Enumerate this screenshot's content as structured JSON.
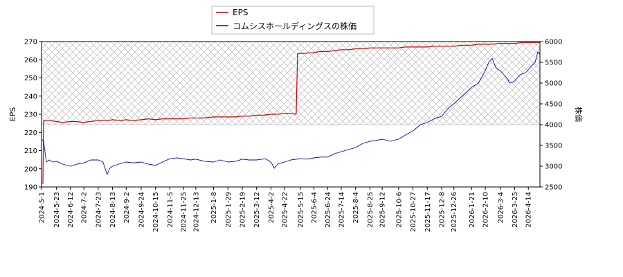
{
  "chart_data": {
    "type": "line",
    "xlabel": "",
    "ylabel_left": "EPS",
    "ylabel_right": "株価",
    "ylim_left": [
      190,
      270
    ],
    "ylim_right": [
      2500,
      6000
    ],
    "yticks_left": [
      "190",
      "200",
      "210",
      "220",
      "230",
      "240",
      "250",
      "260",
      "270"
    ],
    "yticks_right": [
      "2500",
      "3000",
      "3500",
      "4000",
      "4500",
      "5000",
      "5500",
      "6000"
    ],
    "xlim": [
      "2024-05-01",
      "2026-05-01"
    ],
    "xticks": [
      "2024-5-1",
      "2024-5-23",
      "2024-6-12",
      "2024-7-2",
      "2024-7-23",
      "2024-8-13",
      "2024-9-2",
      "2024-9-24",
      "2024-10-15",
      "2024-11-5",
      "2024-11-25",
      "2024-12-13",
      "2025-1-8",
      "2025-1-29",
      "2025-2-19",
      "2025-3-12",
      "2025-4-2",
      "2025-4-22",
      "2025-5-15",
      "2025-6-4",
      "2025-6-24",
      "2025-7-14",
      "2025-8-4",
      "2025-8-25",
      "2025-9-12",
      "2025-10-6",
      "2025-10-27",
      "2025-11-17",
      "2025-12-8",
      "2025-12-26",
      "2026-1-21",
      "2026-2-10",
      "2026-3-4",
      "2026-3-25",
      "2026-4-14"
    ],
    "legend_position": "top-center",
    "hatched_band": {
      "axis": "right",
      "y_range": [
        4000,
        6000
      ]
    },
    "series": [
      {
        "name": "EPS",
        "axis": "left",
        "color": "#cc0000",
        "points": [
          [
            "2024-05-01",
            192
          ],
          [
            "2024-05-03",
            192
          ],
          [
            "2024-05-04",
            226.5
          ],
          [
            "2024-05-15",
            226.5
          ],
          [
            "2024-05-23",
            226
          ],
          [
            "2024-06-01",
            225.5
          ],
          [
            "2024-06-12",
            226
          ],
          [
            "2024-06-20",
            226
          ],
          [
            "2024-07-02",
            225.5
          ],
          [
            "2024-07-10",
            226
          ],
          [
            "2024-07-23",
            226.5
          ],
          [
            "2024-08-05",
            226.5
          ],
          [
            "2024-08-13",
            227
          ],
          [
            "2024-08-25",
            226.5
          ],
          [
            "2024-09-02",
            227
          ],
          [
            "2024-09-12",
            226.5
          ],
          [
            "2024-09-24",
            227
          ],
          [
            "2024-10-05",
            227.5
          ],
          [
            "2024-10-15",
            227
          ],
          [
            "2024-10-25",
            227.5
          ],
          [
            "2024-11-05",
            227.5
          ],
          [
            "2024-11-15",
            227.5
          ],
          [
            "2024-11-25",
            227.5
          ],
          [
            "2024-12-05",
            228
          ],
          [
            "2024-12-13",
            228
          ],
          [
            "2024-12-25",
            228
          ],
          [
            "2025-01-08",
            228.5
          ],
          [
            "2025-01-20",
            228.5
          ],
          [
            "2025-01-29",
            228.5
          ],
          [
            "2025-02-10",
            228.5
          ],
          [
            "2025-02-19",
            229
          ],
          [
            "2025-03-01",
            229
          ],
          [
            "2025-03-12",
            229.5
          ],
          [
            "2025-03-22",
            229.5
          ],
          [
            "2025-04-02",
            230
          ],
          [
            "2025-04-12",
            230
          ],
          [
            "2025-04-22",
            230.5
          ],
          [
            "2025-05-01",
            230.5
          ],
          [
            "2025-05-09",
            230
          ],
          [
            "2025-05-11",
            263.5
          ],
          [
            "2025-05-20",
            263.5
          ],
          [
            "2025-06-04",
            264
          ],
          [
            "2025-06-14",
            264.5
          ],
          [
            "2025-06-24",
            264.5
          ],
          [
            "2025-07-04",
            265
          ],
          [
            "2025-07-14",
            265.5
          ],
          [
            "2025-07-25",
            265.5
          ],
          [
            "2025-08-04",
            266
          ],
          [
            "2025-08-15",
            266
          ],
          [
            "2025-08-25",
            266.5
          ],
          [
            "2025-09-03",
            266.5
          ],
          [
            "2025-09-12",
            266.5
          ],
          [
            "2025-09-24",
            266.5
          ],
          [
            "2025-10-06",
            266.5
          ],
          [
            "2025-10-16",
            267
          ],
          [
            "2025-10-27",
            267
          ],
          [
            "2025-11-07",
            267
          ],
          [
            "2025-11-17",
            267
          ],
          [
            "2025-11-28",
            267.5
          ],
          [
            "2025-12-08",
            267.5
          ],
          [
            "2025-12-18",
            267.5
          ],
          [
            "2025-12-26",
            267.5
          ],
          [
            "2026-01-08",
            268
          ],
          [
            "2026-01-21",
            268
          ],
          [
            "2026-01-31",
            268.5
          ],
          [
            "2026-02-10",
            268.5
          ],
          [
            "2026-02-20",
            268.5
          ],
          [
            "2026-03-04",
            269
          ],
          [
            "2026-03-15",
            269
          ],
          [
            "2026-03-25",
            269
          ],
          [
            "2026-04-05",
            269.5
          ],
          [
            "2026-04-14",
            269.5
          ],
          [
            "2026-04-25",
            269.5
          ],
          [
            "2026-05-01",
            269.5
          ]
        ]
      },
      {
        "name": "コムシスホールディングスの株価",
        "axis": "right",
        "color": "#0000cc",
        "points": [
          [
            "2024-05-01",
            3650
          ],
          [
            "2024-05-04",
            3600
          ],
          [
            "2024-05-08",
            3100
          ],
          [
            "2024-05-12",
            3150
          ],
          [
            "2024-05-18",
            3100
          ],
          [
            "2024-05-23",
            3120
          ],
          [
            "2024-06-01",
            3050
          ],
          [
            "2024-06-12",
            3000
          ],
          [
            "2024-06-22",
            3050
          ],
          [
            "2024-07-02",
            3080
          ],
          [
            "2024-07-12",
            3150
          ],
          [
            "2024-07-23",
            3150
          ],
          [
            "2024-07-30",
            3100
          ],
          [
            "2024-08-05",
            2800
          ],
          [
            "2024-08-09",
            2950
          ],
          [
            "2024-08-13",
            3000
          ],
          [
            "2024-08-22",
            3050
          ],
          [
            "2024-09-02",
            3100
          ],
          [
            "2024-09-12",
            3080
          ],
          [
            "2024-09-24",
            3100
          ],
          [
            "2024-10-05",
            3050
          ],
          [
            "2024-10-15",
            3020
          ],
          [
            "2024-10-25",
            3100
          ],
          [
            "2024-11-05",
            3180
          ],
          [
            "2024-11-15",
            3200
          ],
          [
            "2024-11-25",
            3180
          ],
          [
            "2024-12-05",
            3150
          ],
          [
            "2024-12-13",
            3170
          ],
          [
            "2024-12-25",
            3120
          ],
          [
            "2025-01-08",
            3100
          ],
          [
            "2025-01-18",
            3150
          ],
          [
            "2025-01-29",
            3100
          ],
          [
            "2025-02-10",
            3120
          ],
          [
            "2025-02-19",
            3170
          ],
          [
            "2025-03-01",
            3150
          ],
          [
            "2025-03-12",
            3150
          ],
          [
            "2025-03-25",
            3180
          ],
          [
            "2025-04-02",
            3100
          ],
          [
            "2025-04-07",
            2950
          ],
          [
            "2025-04-12",
            3050
          ],
          [
            "2025-04-22",
            3100
          ],
          [
            "2025-05-01",
            3150
          ],
          [
            "2025-05-15",
            3180
          ],
          [
            "2025-05-25",
            3170
          ],
          [
            "2025-06-04",
            3200
          ],
          [
            "2025-06-14",
            3220
          ],
          [
            "2025-06-24",
            3220
          ],
          [
            "2025-07-04",
            3300
          ],
          [
            "2025-07-14",
            3350
          ],
          [
            "2025-07-25",
            3400
          ],
          [
            "2025-08-04",
            3450
          ],
          [
            "2025-08-15",
            3550
          ],
          [
            "2025-08-25",
            3600
          ],
          [
            "2025-09-03",
            3620
          ],
          [
            "2025-09-12",
            3650
          ],
          [
            "2025-09-24",
            3600
          ],
          [
            "2025-10-06",
            3650
          ],
          [
            "2025-10-16",
            3750
          ],
          [
            "2025-10-27",
            3850
          ],
          [
            "2025-11-07",
            4000
          ],
          [
            "2025-11-17",
            4050
          ],
          [
            "2025-11-28",
            4150
          ],
          [
            "2025-12-08",
            4200
          ],
          [
            "2025-12-18",
            4400
          ],
          [
            "2025-12-26",
            4500
          ],
          [
            "2026-01-08",
            4700
          ],
          [
            "2026-01-21",
            4900
          ],
          [
            "2026-01-31",
            5000
          ],
          [
            "2026-02-10",
            5300
          ],
          [
            "2026-02-15",
            5500
          ],
          [
            "2026-02-20",
            5600
          ],
          [
            "2026-02-26",
            5350
          ],
          [
            "2026-03-04",
            5300
          ],
          [
            "2026-03-12",
            5150
          ],
          [
            "2026-03-18",
            5000
          ],
          [
            "2026-03-25",
            5050
          ],
          [
            "2026-04-02",
            5200
          ],
          [
            "2026-04-10",
            5250
          ],
          [
            "2026-04-18",
            5400
          ],
          [
            "2026-04-24",
            5500
          ],
          [
            "2026-04-28",
            5750
          ],
          [
            "2026-05-01",
            5700
          ]
        ]
      }
    ]
  }
}
